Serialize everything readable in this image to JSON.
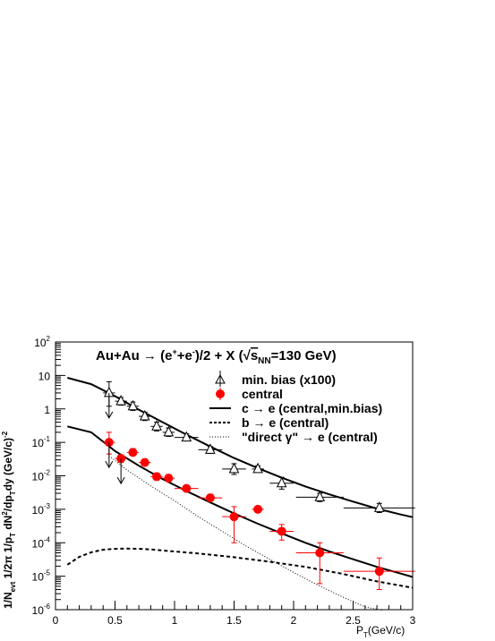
{
  "chart_data": {
    "type": "scatter",
    "title": "Au+Au → (e⁺+e⁻)/2 + X (√sNN=130 GeV)",
    "title_parts": {
      "pre": "Au+Au → (e",
      "sup1": "+",
      "mid1": "+e",
      "sup2": "-",
      "mid2": ")/2 + X (",
      "sqrt": "√",
      "s": "s",
      "sub": "NN",
      "post": "=130 GeV)"
    },
    "xlabel": "PT(GeV/c)",
    "xlabel_parts": {
      "main": "P",
      "sub": "T",
      "rest": "(GeV/c)"
    },
    "ylabel": "1/Nevt 1/2π 1/pT dN²/dpT dy (GeV/c)⁻²",
    "ylabel_parts": {
      "a": "1/N",
      "a_sub": "evt",
      "b": " 1/2π 1/p",
      "b_sub": "T",
      "c": " dN",
      "c_sup": "2",
      "d": "/dp",
      "d_sub": "T",
      "e": "dy (GeV/c)",
      "e_sup": "-2"
    },
    "xlim": [
      0,
      3
    ],
    "ylim": [
      1e-06,
      100
    ],
    "yscale": "log",
    "grid": false,
    "legend_position": "top-right",
    "x_ticks": [
      0,
      0.5,
      1,
      1.5,
      2,
      2.5,
      3
    ],
    "x_tick_labels": [
      "0",
      "0.5",
      "1",
      "1.5",
      "2",
      "2.5",
      "3"
    ],
    "y_ticks": [
      {
        "base": "10",
        "exp": "-6",
        "value": 1e-06
      },
      {
        "base": "10",
        "exp": "-5",
        "value": 1e-05
      },
      {
        "base": "10",
        "exp": "-4",
        "value": 0.0001
      },
      {
        "base": "10",
        "exp": "-3",
        "value": 0.001
      },
      {
        "base": "10",
        "exp": "-2",
        "value": 0.01
      },
      {
        "base": "10",
        "exp": "-1",
        "value": 0.1
      },
      {
        "base": "1",
        "exp": "",
        "value": 1
      },
      {
        "base": "10",
        "exp": "",
        "value": 10
      },
      {
        "base": "10",
        "exp": "2",
        "value": 100
      }
    ],
    "legend": [
      {
        "label": "min. bias (x100)",
        "style": "open-triangle"
      },
      {
        "label": "central",
        "style": "red-circle"
      },
      {
        "label": "c → e (central,min.bias)",
        "style": "solid"
      },
      {
        "label": "b → e (central)",
        "style": "dashed"
      },
      {
        "label": "\"direct γ\" → e (central)",
        "style": "dotted"
      }
    ],
    "series": [
      {
        "name": "min. bias (x100)",
        "marker": "open-triangle",
        "color": "#000000",
        "points": [
          {
            "x": 0.45,
            "y": 3.0,
            "xerr": 0.05,
            "ylo": 1.2,
            "yhi": 6.5
          },
          {
            "x": 0.55,
            "y": 1.7,
            "xerr": 0.05,
            "ylo": 1.3,
            "yhi": 2.2
          },
          {
            "x": 0.65,
            "y": 1.2,
            "xerr": 0.05,
            "ylo": 0.9,
            "yhi": 1.6
          },
          {
            "x": 0.75,
            "y": 0.6,
            "xerr": 0.05,
            "ylo": 0.45,
            "yhi": 0.8
          },
          {
            "x": 0.85,
            "y": 0.3,
            "xerr": 0.05,
            "ylo": 0.22,
            "yhi": 0.4
          },
          {
            "x": 0.95,
            "y": 0.2,
            "xerr": 0.05,
            "ylo": 0.15,
            "yhi": 0.27
          },
          {
            "x": 1.1,
            "y": 0.14,
            "xerr": 0.1,
            "ylo": 0.11,
            "yhi": 0.18
          },
          {
            "x": 1.3,
            "y": 0.06,
            "xerr": 0.1,
            "ylo": 0.047,
            "yhi": 0.075
          },
          {
            "x": 1.5,
            "y": 0.016,
            "xerr": 0.1,
            "ylo": 0.011,
            "yhi": 0.023
          },
          {
            "x": 1.7,
            "y": 0.016,
            "xerr": 0.05,
            "ylo": 0.013,
            "yhi": 0.02
          },
          {
            "x": 1.9,
            "y": 0.006,
            "xerr": 0.1,
            "ylo": 0.004,
            "yhi": 0.009
          },
          {
            "x": 2.22,
            "y": 0.0023,
            "xerr": 0.2,
            "ylo": 0.0017,
            "yhi": 0.003
          },
          {
            "x": 2.72,
            "y": 0.0011,
            "xerr": 0.3,
            "ylo": 0.0008,
            "yhi": 0.0015
          }
        ],
        "upper_limits": [
          {
            "x": 0.45,
            "y": 3.0
          }
        ]
      },
      {
        "name": "central",
        "marker": "filled-circle",
        "color": "#ff0000",
        "points": [
          {
            "x": 0.45,
            "y": 0.1,
            "xerr": 0.05,
            "ylo": 0.045,
            "yhi": 0.2
          },
          {
            "x": 0.55,
            "y": 0.033,
            "xerr": 0.05,
            "ylo": 0.025,
            "yhi": 0.042
          },
          {
            "x": 0.65,
            "y": 0.05,
            "xerr": 0.05,
            "ylo": 0.04,
            "yhi": 0.065
          },
          {
            "x": 0.75,
            "y": 0.025,
            "xerr": 0.05,
            "ylo": 0.02,
            "yhi": 0.032
          },
          {
            "x": 0.85,
            "y": 0.0095,
            "xerr": 0.05,
            "ylo": 0.0075,
            "yhi": 0.012
          },
          {
            "x": 0.95,
            "y": 0.0085,
            "xerr": 0.05,
            "ylo": 0.0068,
            "yhi": 0.011
          },
          {
            "x": 1.1,
            "y": 0.0042,
            "xerr": 0.1,
            "ylo": 0.0034,
            "yhi": 0.0052
          },
          {
            "x": 1.3,
            "y": 0.0022,
            "xerr": 0.1,
            "ylo": 0.0018,
            "yhi": 0.0028
          },
          {
            "x": 1.5,
            "y": 0.0006,
            "xerr": 0.1,
            "ylo": 0.0001,
            "yhi": 0.0012
          },
          {
            "x": 1.7,
            "y": 0.001,
            "xerr": 0.05,
            "ylo": 0.0008,
            "yhi": 0.0012
          },
          {
            "x": 1.9,
            "y": 0.00022,
            "xerr": 0.1,
            "ylo": 0.00012,
            "yhi": 0.00035
          },
          {
            "x": 2.22,
            "y": 5e-05,
            "xerr": 0.2,
            "ylo": 6e-06,
            "yhi": 0.0001
          },
          {
            "x": 2.72,
            "y": 1.4e-05,
            "xerr": 0.3,
            "ylo": 4e-06,
            "yhi": 3.5e-05
          }
        ],
        "upper_limits": [
          {
            "x": 0.45,
            "y": 0.1
          },
          {
            "x": 0.55,
            "y": 0.033
          }
        ]
      }
    ],
    "curves": [
      {
        "name": "c → e (min.bias)",
        "style": "solid",
        "x": [
          0.1,
          0.3,
          0.5,
          0.7,
          0.9,
          1.1,
          1.3,
          1.5,
          1.7,
          1.9,
          2.1,
          2.3,
          2.5,
          2.7,
          2.9,
          3.0
        ],
        "y": [
          8.5,
          5.5,
          2.4,
          0.95,
          0.4,
          0.17,
          0.075,
          0.034,
          0.017,
          0.0088,
          0.0048,
          0.0028,
          0.0017,
          0.00105,
          0.0007,
          0.00058
        ]
      },
      {
        "name": "c → e (central)",
        "style": "solid",
        "x": [
          0.1,
          0.3,
          0.5,
          0.7,
          0.9,
          1.1,
          1.3,
          1.5,
          1.7,
          1.9,
          2.1,
          2.3,
          2.5,
          2.7,
          2.9,
          3.0
        ],
        "y": [
          0.3,
          0.2,
          0.055,
          0.02,
          0.008,
          0.0035,
          0.0016,
          0.00075,
          0.00037,
          0.00019,
          0.0001,
          5.5e-05,
          3.2e-05,
          1.9e-05,
          1.2e-05,
          9.5e-06
        ]
      },
      {
        "name": "b → e (central)",
        "style": "dashed",
        "x": [
          0.1,
          0.2,
          0.3,
          0.4,
          0.5,
          0.6,
          0.7,
          0.8,
          1.0,
          1.2,
          1.5,
          1.8,
          2.1,
          2.4,
          2.7,
          3.0
        ],
        "y": [
          2.2e-05,
          3.8e-05,
          5.2e-05,
          6.2e-05,
          6.6e-05,
          6.7e-05,
          6.6e-05,
          6.3e-05,
          5.5e-05,
          4.8e-05,
          3.7e-05,
          2.7e-05,
          1.9e-05,
          1.2e-05,
          7e-06,
          4.5e-06
        ]
      },
      {
        "name": "\"direct γ\" → e (central)",
        "style": "dotted",
        "x": [
          0.45,
          0.6,
          0.8,
          1.0,
          1.2,
          1.4,
          1.6,
          1.8,
          2.0,
          2.2,
          2.4,
          2.6,
          2.75
        ],
        "y": [
          0.04,
          0.015,
          0.005,
          0.0018,
          0.0006,
          0.00022,
          8e-05,
          3.2e-05,
          1.3e-05,
          5.5e-06,
          2.5e-06,
          1.2e-06,
          9.5e-07
        ]
      }
    ]
  }
}
